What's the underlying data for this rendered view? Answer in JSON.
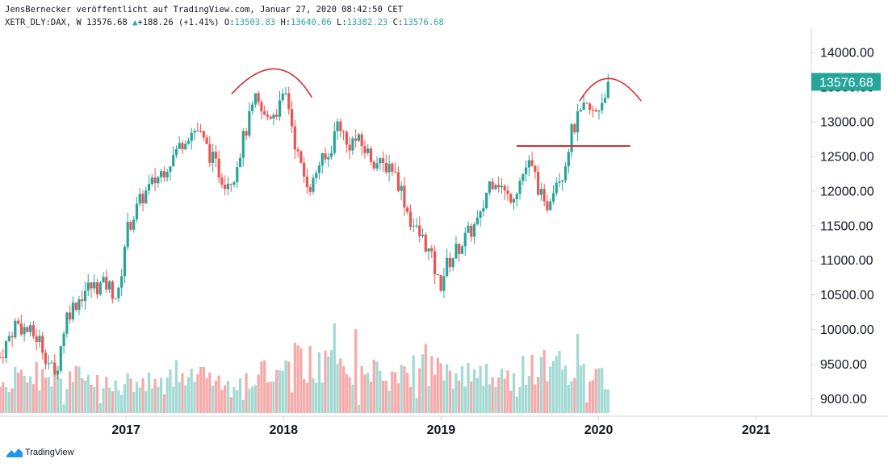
{
  "header": {
    "line1": "JensBernecker veröffentlicht auf TradingView.com, Januar 27, 2020 08:42:50 CET",
    "symbol": "XETR_DLY:DAX, W",
    "price": "13576.68",
    "change": "+188.26 (+1.41%)",
    "o_label": "O:",
    "o_value": "13503.83",
    "h_label": "H:",
    "h_value": "13640.06",
    "l_label": "L:",
    "l_value": "13382.23",
    "c_label": "C:",
    "c_value": "13576.68"
  },
  "footer": {
    "brand": "TradingView",
    "logo_icon": "tradingview-logo-icon"
  },
  "colors": {
    "up": "#26a69a",
    "down": "#ef5350",
    "vol_up": "#a3d9d3",
    "vol_down": "#f5a9a8",
    "annotation": "#d32f2f"
  },
  "chart_data": {
    "type": "candlestick",
    "y_ticks": [
      "14000.00",
      "13500.00",
      "13000.00",
      "12500.00",
      "12000.00",
      "11500.00",
      "11000.00",
      "10500.00",
      "10000.00",
      "9500.00",
      "9000.00"
    ],
    "ylim": [
      8750,
      14350
    ],
    "last_price_label": "13576.68",
    "x_ticks": [
      "2017",
      "2018",
      "2019",
      "2020",
      "2021"
    ],
    "x_tick_dates": [
      2017.0,
      2018.0,
      2019.0,
      2020.0,
      2021.0
    ],
    "xlim": [
      2016.2,
      2021.35
    ],
    "price_anchors": [
      [
        2016.2,
        9600
      ],
      [
        2016.3,
        10100
      ],
      [
        2016.45,
        9850
      ],
      [
        2016.55,
        9300
      ],
      [
        2016.62,
        10200
      ],
      [
        2016.75,
        10600
      ],
      [
        2016.88,
        10650
      ],
      [
        2016.95,
        10450
      ],
      [
        2017.0,
        11400
      ],
      [
        2017.1,
        11900
      ],
      [
        2017.2,
        12200
      ],
      [
        2017.3,
        12500
      ],
      [
        2017.38,
        12800
      ],
      [
        2017.45,
        12900
      ],
      [
        2017.55,
        12450
      ],
      [
        2017.62,
        12150
      ],
      [
        2017.68,
        12200
      ],
      [
        2017.75,
        12800
      ],
      [
        2017.82,
        13300
      ],
      [
        2017.88,
        13050
      ],
      [
        2017.97,
        13200
      ],
      [
        2018.02,
        13400
      ],
      [
        2018.08,
        12600
      ],
      [
        2018.12,
        12250
      ],
      [
        2018.18,
        12050
      ],
      [
        2018.22,
        12400
      ],
      [
        2018.28,
        12450
      ],
      [
        2018.35,
        13050
      ],
      [
        2018.4,
        12650
      ],
      [
        2018.45,
        12750
      ],
      [
        2018.5,
        12650
      ],
      [
        2018.55,
        12500
      ],
      [
        2018.62,
        12350
      ],
      [
        2018.68,
        12400
      ],
      [
        2018.75,
        12000
      ],
      [
        2018.8,
        11600
      ],
      [
        2018.85,
        11400
      ],
      [
        2018.9,
        11250
      ],
      [
        2018.95,
        10950
      ],
      [
        2018.99,
        10600
      ],
      [
        2019.03,
        10900
      ],
      [
        2019.1,
        11150
      ],
      [
        2019.18,
        11400
      ],
      [
        2019.25,
        11600
      ],
      [
        2019.3,
        12100
      ],
      [
        2019.35,
        12200
      ],
      [
        2019.42,
        11900
      ],
      [
        2019.47,
        12000
      ],
      [
        2019.55,
        12400
      ],
      [
        2019.6,
        12200
      ],
      [
        2019.66,
        11700
      ],
      [
        2019.72,
        12150
      ],
      [
        2019.78,
        12300
      ],
      [
        2019.82,
        12800
      ],
      [
        2019.86,
        13000
      ],
      [
        2019.92,
        13200
      ],
      [
        2019.97,
        13100
      ],
      [
        2020.02,
        13300
      ],
      [
        2020.06,
        13576.68
      ]
    ],
    "volume_levels": [
      0.85,
      0.95,
      0.9,
      0.7,
      0.75,
      0.8,
      1.0,
      0.9,
      0.85,
      1.1,
      1.3,
      1.2,
      1.0,
      0.95,
      1.1,
      1.05,
      1.0,
      0.9,
      1.2,
      1.1,
      1.0
    ],
    "annotations": [
      {
        "type": "arc",
        "label": "top-2018"
      },
      {
        "type": "arc",
        "label": "top-2020"
      },
      {
        "type": "horizontal-line",
        "value": 12650,
        "from": 2019.48,
        "to": 2020.2
      }
    ],
    "grid": false,
    "legend": "none"
  }
}
